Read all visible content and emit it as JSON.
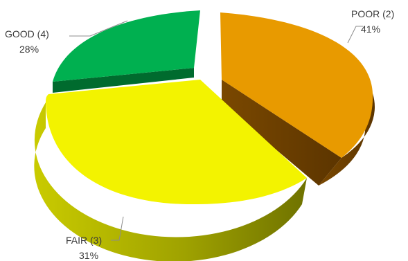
{
  "chart_data": {
    "type": "pie",
    "title": "",
    "legend": "none",
    "style": "3d-exploded",
    "slices": [
      {
        "name": "POOR (2)",
        "value": 41,
        "label": "41%",
        "color": "#E89A00"
      },
      {
        "name": "FAIR (3)",
        "value": 31,
        "label": "31%",
        "color": "#F3F300"
      },
      {
        "name": "GOOD (4)",
        "value": 28,
        "label": "28%",
        "color": "#00B050"
      }
    ]
  }
}
